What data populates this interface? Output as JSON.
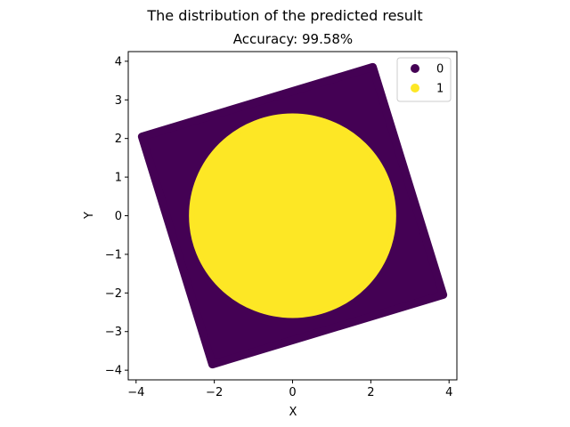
{
  "figure": {
    "suptitle": "The distribution of the predicted result"
  },
  "chart_data": {
    "type": "scatter",
    "title": "Accuracy: 99.58%",
    "xlabel": "X",
    "ylabel": "Y",
    "xlim": [
      -4.2,
      4.2
    ],
    "ylim": [
      -4.25,
      4.25
    ],
    "xticks": [
      -4,
      -2,
      0,
      2,
      4
    ],
    "yticks": [
      -4,
      -3,
      -2,
      -1,
      0,
      1,
      2,
      3,
      4
    ],
    "xtick_labels": [
      "−4",
      "−2",
      "0",
      "2",
      "4"
    ],
    "ytick_labels": [
      "−4",
      "−3",
      "−2",
      "−1",
      "0",
      "1",
      "2",
      "3",
      "4"
    ],
    "grid": false,
    "legend_position": "top-right",
    "series": [
      {
        "name": "0",
        "color": "#440154",
        "region": "rotated square",
        "corners": [
          [
            -3.85,
            2.05
          ],
          [
            2.05,
            3.85
          ],
          [
            3.85,
            -2.05
          ],
          [
            -2.05,
            -3.85
          ]
        ]
      },
      {
        "name": "1",
        "color": "#fde725",
        "region": "disk",
        "center": [
          0,
          0
        ],
        "radius": 2.58
      }
    ]
  }
}
